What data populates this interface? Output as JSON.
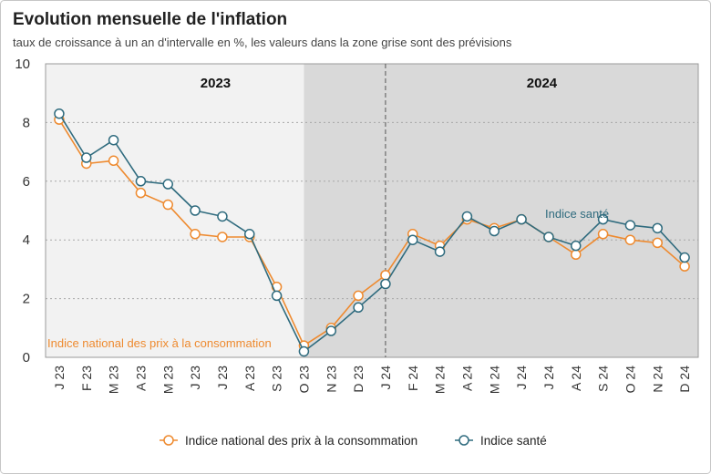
{
  "chart_data": {
    "type": "line",
    "title": "Evolution mensuelle de l'inflation",
    "subtitle": "taux de croissance à un an d'intervalle en %, les valeurs dans la zone grise sont des prévisions",
    "xlabel": "",
    "ylabel": "",
    "categories": [
      "J 23",
      "F 23",
      "M 23",
      "A 23",
      "M 23",
      "J 23",
      "J 23",
      "A 23",
      "S 23",
      "O 23",
      "N 23",
      "D 23",
      "J 24",
      "F 24",
      "M 24",
      "A 24",
      "M 24",
      "J 24",
      "J 24",
      "A 24",
      "S 24",
      "O 24",
      "N 24",
      "D 24"
    ],
    "series": [
      {
        "name": "Indice national des prix à la consommation",
        "color": "#ee8a2f",
        "values": [
          8.1,
          6.6,
          6.7,
          5.6,
          5.2,
          4.2,
          4.1,
          4.1,
          2.4,
          0.4,
          1.0,
          2.1,
          2.8,
          4.2,
          3.8,
          4.7,
          4.4,
          4.7,
          4.1,
          3.5,
          4.2,
          4.0,
          3.9,
          3.1
        ]
      },
      {
        "name": "Indice santé",
        "color": "#2f6b7e",
        "values": [
          8.3,
          6.8,
          7.4,
          6.0,
          5.9,
          5.0,
          4.8,
          4.2,
          2.1,
          0.2,
          0.9,
          1.7,
          2.5,
          4.0,
          3.6,
          4.8,
          4.3,
          4.7,
          4.1,
          3.8,
          4.7,
          4.5,
          4.4,
          3.4
        ]
      }
    ],
    "ylim": [
      0,
      10
    ],
    "yticks": [
      0,
      2,
      4,
      6,
      8,
      10
    ],
    "grid": true,
    "forecast_start": "O 23",
    "period_boundary": "J 24",
    "periods": [
      {
        "label": "2023"
      },
      {
        "label": "2024"
      }
    ],
    "annotations": [
      {
        "text": "Indice national des prix à la consommation",
        "series": 0
      },
      {
        "text": "Indice santé",
        "series": 1
      }
    ],
    "legend": {
      "position": "bottom"
    },
    "zone_colors": {
      "history": "#f2f2f2",
      "forecast": "#d9d9d9"
    }
  }
}
